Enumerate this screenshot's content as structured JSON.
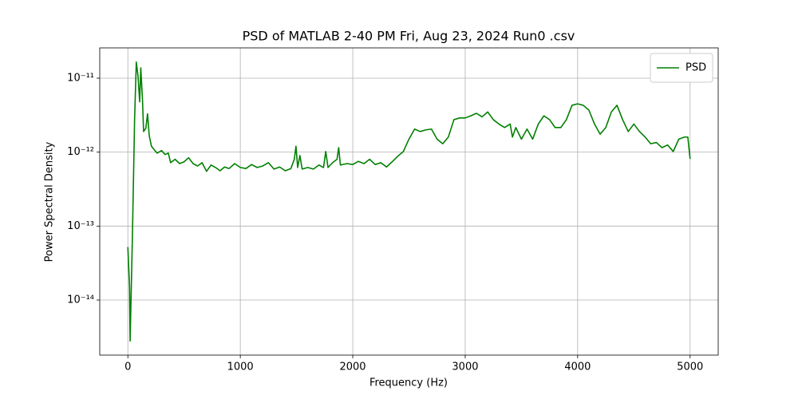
{
  "chart_data": {
    "type": "line",
    "title": "PSD of MATLAB 2-40 PM Fri, Aug 23, 2024 Run0 .csv",
    "x_label": "Frequency (Hz)",
    "y_label": "Power Spectral Density",
    "log_y": true,
    "grid": true,
    "legend": "upper right",
    "xlim": [
      -250,
      5250
    ],
    "ylim": [
      1.8e-15,
      2.57e-11
    ],
    "xticks": [
      0,
      1000,
      2000,
      3000,
      4000,
      5000
    ],
    "yticks": [
      {
        "value": 1e-14,
        "label": "10⁻¹⁴"
      },
      {
        "value": 1e-13,
        "label": "10⁻¹³"
      },
      {
        "value": 1e-12,
        "label": "10⁻¹²"
      },
      {
        "value": 1e-11,
        "label": "10⁻¹¹"
      }
    ],
    "x": [
      0,
      15,
      20,
      40,
      60,
      75,
      90,
      105,
      115,
      130,
      140,
      160,
      175,
      190,
      210,
      230,
      260,
      300,
      330,
      360,
      380,
      420,
      460,
      500,
      540,
      580,
      620,
      660,
      700,
      740,
      780,
      820,
      860,
      900,
      950,
      1000,
      1050,
      1100,
      1150,
      1200,
      1250,
      1300,
      1350,
      1400,
      1450,
      1480,
      1495,
      1510,
      1530,
      1550,
      1600,
      1650,
      1700,
      1740,
      1760,
      1780,
      1820,
      1860,
      1875,
      1890,
      1950,
      2000,
      2050,
      2100,
      2150,
      2200,
      2250,
      2300,
      2350,
      2400,
      2450,
      2500,
      2550,
      2600,
      2650,
      2700,
      2750,
      2800,
      2850,
      2900,
      2950,
      3000,
      3050,
      3100,
      3150,
      3200,
      3250,
      3300,
      3350,
      3400,
      3420,
      3450,
      3500,
      3550,
      3600,
      3650,
      3700,
      3750,
      3800,
      3850,
      3900,
      3950,
      4000,
      4050,
      4100,
      4150,
      4200,
      4250,
      4300,
      4350,
      4400,
      4450,
      4500,
      4550,
      4600,
      4650,
      4700,
      4750,
      4800,
      4850,
      4900,
      4950,
      4980,
      5000
    ],
    "series": [
      {
        "name": "PSD",
        "color": "#008000",
        "values": [
          5.2e-14,
          1.5e-14,
          2.8e-15,
          6.6e-14,
          2.8e-12,
          1.65e-11,
          1.08e-11,
          4.8e-12,
          1.38e-11,
          5.1e-12,
          1.9e-12,
          2.1e-12,
          3.3e-12,
          1.67e-12,
          1.2e-12,
          1.1e-12,
          9.7e-13,
          1.05e-12,
          9.3e-13,
          9.7e-13,
          7.2e-13,
          8e-13,
          7e-13,
          7.4e-13,
          8.4e-13,
          7e-13,
          6.5e-13,
          7.2e-13,
          5.5e-13,
          6.7e-13,
          6.2e-13,
          5.6e-13,
          6.3e-13,
          6e-13,
          7e-13,
          6.2e-13,
          6e-13,
          6.8e-13,
          6.2e-13,
          6.5e-13,
          7.2e-13,
          5.9e-13,
          6.3e-13,
          5.6e-13,
          6e-13,
          8e-13,
          1.2e-12,
          6.2e-13,
          9e-13,
          5.9e-13,
          6.2e-13,
          5.9e-13,
          6.7e-13,
          6.2e-13,
          1.02e-12,
          6.2e-13,
          7.2e-13,
          8e-13,
          1.15e-12,
          6.7e-13,
          7e-13,
          6.8e-13,
          7.5e-13,
          7e-13,
          8e-13,
          6.8e-13,
          7.2e-13,
          6.3e-13,
          7.4e-13,
          8.8e-13,
          1.02e-12,
          1.5e-12,
          2.05e-12,
          1.9e-12,
          2e-12,
          2.05e-12,
          1.5e-12,
          1.3e-12,
          1.6e-12,
          2.75e-12,
          2.9e-12,
          2.9e-12,
          3.1e-12,
          3.35e-12,
          3e-12,
          3.5e-12,
          2.75e-12,
          2.4e-12,
          2.15e-12,
          2.4e-12,
          1.6e-12,
          2.15e-12,
          1.5e-12,
          2.05e-12,
          1.5e-12,
          2.4e-12,
          3.1e-12,
          2.75e-12,
          2.15e-12,
          2.15e-12,
          2.75e-12,
          4.3e-12,
          4.5e-12,
          4.3e-12,
          3.7e-12,
          2.4e-12,
          1.75e-12,
          2.15e-12,
          3.5e-12,
          4.3e-12,
          2.75e-12,
          1.9e-12,
          2.4e-12,
          1.9e-12,
          1.6e-12,
          1.3e-12,
          1.35e-12,
          1.15e-12,
          1.25e-12,
          1.02e-12,
          1.5e-12,
          1.6e-12,
          1.6e-12,
          8.1e-13
        ]
      }
    ]
  }
}
